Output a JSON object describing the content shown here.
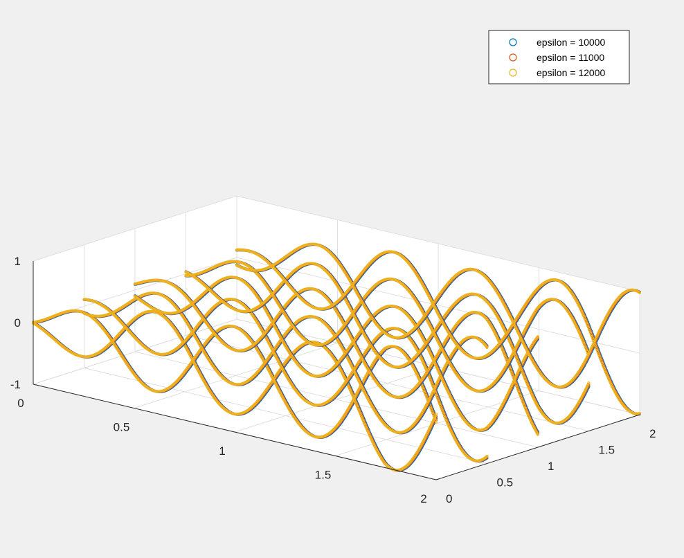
{
  "chart_data": {
    "type": "scatter",
    "view": "3d",
    "title": "",
    "xlabel": "",
    "ylabel": "",
    "zlabel": "",
    "xlim": [
      0,
      2
    ],
    "ylim": [
      0,
      2
    ],
    "zlim": [
      -1,
      1
    ],
    "x_ticks": [
      "0",
      "0.5",
      "1",
      "1.5",
      "2"
    ],
    "y_ticks": [
      "0",
      "0.5",
      "1",
      "1.5",
      "2"
    ],
    "z_ticks": [
      "-1",
      "0",
      "1"
    ],
    "grid": true,
    "legend_position": "top-right",
    "marker": "circle",
    "series": [
      {
        "name": "epsilon = 10000",
        "color": "#0072BD"
      },
      {
        "name": "epsilon = 11000",
        "color": "#D95319"
      },
      {
        "name": "epsilon = 12000",
        "color": "#EDB120"
      }
    ],
    "trace_y": [
      0,
      0.5,
      1,
      1.5,
      2
    ]
  }
}
